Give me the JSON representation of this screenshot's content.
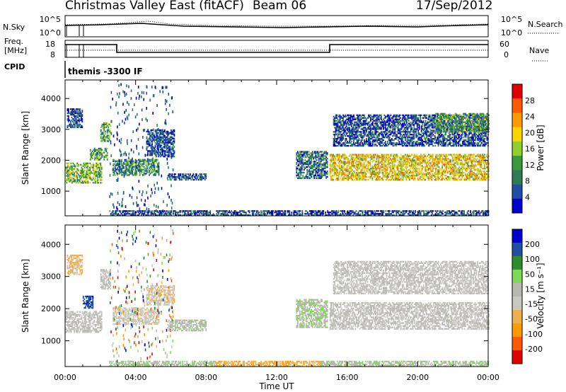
{
  "header": {
    "title": "Christmas Valley East (fitACF)",
    "beam": "Beam 06",
    "date": "17/Sep/2012"
  },
  "strip_panels": {
    "nsky_label": "N.Sky",
    "nsearch_label": "N.Search",
    "nsky_ticks": [
      "10^5",
      "10^0"
    ],
    "nsearch_ticks": [
      "10^5",
      "10^0"
    ],
    "freq_label_1": "Freq.",
    "freq_label_2": "[MHz]",
    "freq_ticks": [
      "18",
      "8"
    ],
    "nave_label": "Nave",
    "nave_ticks": [
      "60",
      "0"
    ],
    "cpid_label": "CPID",
    "cpid_mode": "themis -3300 IF"
  },
  "chart_data": [
    {
      "type": "heatmap",
      "title": "",
      "xlabel": "",
      "ylabel": "Slant Range [km]",
      "xlim": [
        0,
        24
      ],
      "ylim": [
        200,
        4600
      ],
      "x_ticks": [
        "00:00",
        "04:00",
        "08:00",
        "12:00",
        "16:00",
        "20:00",
        "00:00"
      ],
      "y_ticks": [
        "1000",
        "2000",
        "3000",
        "4000"
      ],
      "colorbar": {
        "label": "Power [dB]",
        "ticks": [
          "28",
          "24",
          "20",
          "16",
          "12",
          "8",
          "4"
        ],
        "colors": [
          "#0000cc",
          "#1f4fa6",
          "#2e7b57",
          "#3a9a3a",
          "#8fd12a",
          "#ffd500",
          "#ff9a00",
          "#ff5a00",
          "#e00000"
        ]
      },
      "bands": [
        {
          "t0": 0.0,
          "t1": 2.1,
          "r0": 1250,
          "r1": 1900,
          "power": 14
        },
        {
          "t0": 0.1,
          "t1": 1.0,
          "r0": 3050,
          "r1": 3650,
          "power": 5
        },
        {
          "t0": 2.0,
          "t1": 2.6,
          "r0": 2600,
          "r1": 3200,
          "power": 12
        },
        {
          "t0": 1.4,
          "t1": 2.4,
          "r0": 2000,
          "r1": 2400,
          "power": 12
        },
        {
          "t0": 2.7,
          "t1": 5.3,
          "r0": 1500,
          "r1": 2000,
          "power": 10
        },
        {
          "t0": 4.6,
          "t1": 6.2,
          "r0": 2100,
          "r1": 3000,
          "power": 5
        },
        {
          "t0": 5.8,
          "t1": 8.0,
          "r0": 1350,
          "r1": 1550,
          "power": 5
        },
        {
          "t0": 13.1,
          "t1": 14.9,
          "r0": 1400,
          "r1": 2300,
          "power": 8
        },
        {
          "t0": 15.0,
          "t1": 24.0,
          "r0": 1350,
          "r1": 2200,
          "power": 20
        },
        {
          "t0": 15.2,
          "t1": 24.0,
          "r0": 2450,
          "r1": 3450,
          "power": 5
        },
        {
          "t0": 21.0,
          "t1": 24.0,
          "r0": 2900,
          "r1": 3500,
          "power": 12
        },
        {
          "t0": 2.5,
          "t1": 24.0,
          "r0": 200,
          "r1": 380,
          "power": 5
        }
      ]
    },
    {
      "type": "heatmap",
      "title": "",
      "xlabel": "Time UT",
      "ylabel": "Slant Range [km]",
      "xlim": [
        0,
        24
      ],
      "ylim": [
        200,
        4600
      ],
      "x_ticks": [
        "00:00",
        "04:00",
        "08:00",
        "12:00",
        "16:00",
        "20:00",
        "00:00"
      ],
      "y_ticks": [
        "1000",
        "2000",
        "3000",
        "4000"
      ],
      "colorbar": {
        "label": "Velocity [m s⁻¹]",
        "ticks": [
          "200",
          "100",
          "50",
          "15",
          "-15",
          "-50",
          "-100",
          "-200"
        ],
        "colors": [
          "#e00000",
          "#ff5a00",
          "#ff9a00",
          "#f0b050",
          "#c8c8c0",
          "#b8b8b0",
          "#7ed957",
          "#2e8b2e",
          "#2050a0",
          "#0000cc"
        ]
      },
      "bands": [
        {
          "t0": 0.0,
          "t1": 2.1,
          "r0": 1250,
          "r1": 1900,
          "velocity": 0
        },
        {
          "t0": 0.1,
          "t1": 1.0,
          "r0": 3050,
          "r1": 3650,
          "velocity": -60
        },
        {
          "t0": 1.0,
          "t1": 1.6,
          "r0": 2000,
          "r1": 2400,
          "velocity": 180
        },
        {
          "t0": 2.0,
          "t1": 2.6,
          "r0": 2600,
          "r1": 3200,
          "velocity": 0
        },
        {
          "t0": 2.7,
          "t1": 5.3,
          "r0": 1500,
          "r1": 2000,
          "velocity": -30
        },
        {
          "t0": 4.6,
          "t1": 6.2,
          "r0": 2100,
          "r1": 2700,
          "velocity": -40
        },
        {
          "t0": 5.8,
          "t1": 8.0,
          "r0": 1300,
          "r1": 1650,
          "velocity": 30
        },
        {
          "t0": 13.1,
          "t1": 14.9,
          "r0": 1400,
          "r1": 2300,
          "velocity": 40
        },
        {
          "t0": 15.0,
          "t1": 24.0,
          "r0": 1350,
          "r1": 2200,
          "velocity": 0
        },
        {
          "t0": 15.2,
          "t1": 24.0,
          "r0": 2450,
          "r1": 3450,
          "velocity": -5
        },
        {
          "t0": 8.5,
          "t1": 14.5,
          "r0": 200,
          "r1": 380,
          "velocity": -80
        },
        {
          "t0": 2.5,
          "t1": 8.5,
          "r0": 200,
          "r1": 360,
          "velocity": 40
        },
        {
          "t0": 14.5,
          "t1": 24.0,
          "r0": 200,
          "r1": 360,
          "velocity": 40
        }
      ]
    }
  ]
}
